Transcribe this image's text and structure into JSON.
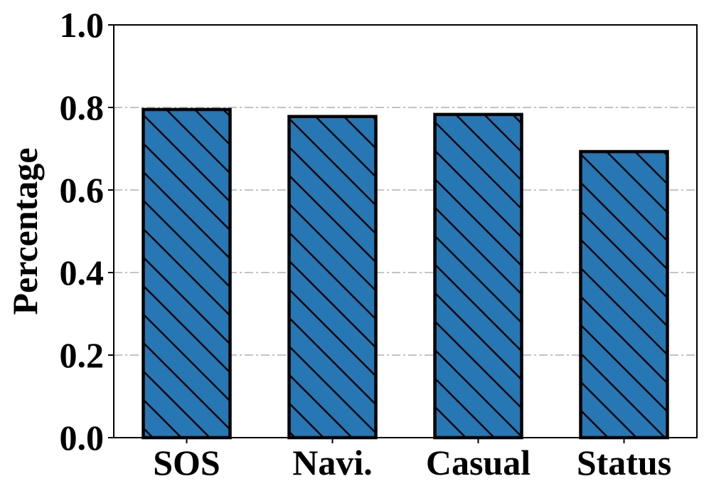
{
  "chart_data": {
    "type": "bar",
    "categories": [
      "SOS",
      "Navi.",
      "Casual",
      "Status"
    ],
    "values": [
      0.795,
      0.778,
      0.783,
      0.693
    ],
    "title": "",
    "xlabel": "",
    "ylabel": "Percentage",
    "ylim": [
      0.0,
      1.0
    ],
    "yticks": [
      "0.0",
      "0.2",
      "0.4",
      "0.6",
      "0.8",
      "1.0"
    ],
    "grid": "horizontal dash-dot",
    "bar_color": "#2677b4",
    "bar_edge_color": "#000000",
    "hatch": "diagonal",
    "grid_color": "#b0b0b0"
  }
}
